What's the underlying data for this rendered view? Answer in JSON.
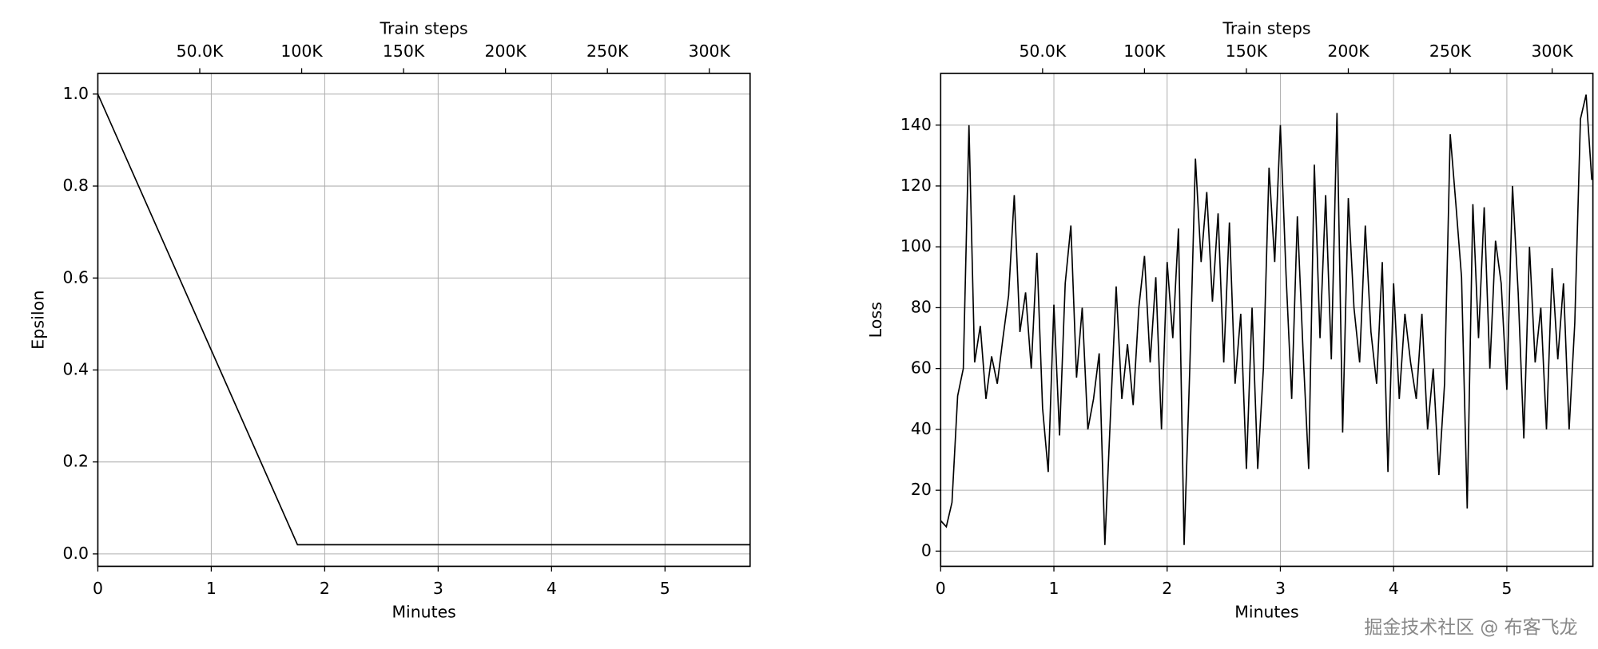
{
  "chart_data": [
    {
      "type": "line",
      "xlabel": "Minutes",
      "ylabel": "Epsilon",
      "x2label": "Train steps",
      "x": [
        0,
        1.76,
        5.75
      ],
      "values": [
        1.0,
        0.02,
        0.02
      ],
      "color": "#000000",
      "xlim": [
        0,
        5.75
      ],
      "xticks": [
        0,
        1,
        2,
        3,
        4,
        5
      ],
      "x2lim": [
        0,
        320000
      ],
      "x2ticks": [
        {
          "value": 50000,
          "label": "50.0K"
        },
        {
          "value": 100000,
          "label": "100K"
        },
        {
          "value": 150000,
          "label": "150K"
        },
        {
          "value": 200000,
          "label": "200K"
        },
        {
          "value": 250000,
          "label": "250K"
        },
        {
          "value": 300000,
          "label": "300K"
        }
      ],
      "ylim": [
        -0.027,
        1.045
      ],
      "yticks": [
        {
          "value": 0,
          "label": "0.0"
        },
        0.2,
        0.4,
        0.6,
        0.8,
        {
          "value": 1,
          "label": "1.0"
        }
      ],
      "grid": true
    },
    {
      "type": "line",
      "xlabel": "Minutes",
      "ylabel": "Loss",
      "x2label": "Train steps",
      "x": [
        0,
        0.05,
        0.1,
        0.15,
        0.2,
        0.25,
        0.3,
        0.35,
        0.4,
        0.45,
        0.5,
        0.55,
        0.6,
        0.65,
        0.7,
        0.75,
        0.8,
        0.85,
        0.9,
        0.95,
        1,
        1.05,
        1.1,
        1.15,
        1.2,
        1.25,
        1.3,
        1.35,
        1.4,
        1.45,
        1.5,
        1.55,
        1.6,
        1.65,
        1.7,
        1.75,
        1.8,
        1.85,
        1.9,
        1.95,
        2,
        2.05,
        2.1,
        2.15,
        2.2,
        2.25,
        2.3,
        2.35,
        2.4,
        2.45,
        2.5,
        2.55,
        2.6,
        2.65,
        2.7,
        2.75,
        2.8,
        2.85,
        2.9,
        2.95,
        3,
        3.05,
        3.1,
        3.15,
        3.2,
        3.25,
        3.3,
        3.35,
        3.4,
        3.45,
        3.5,
        3.55,
        3.6,
        3.65,
        3.7,
        3.75,
        3.8,
        3.85,
        3.9,
        3.95,
        4,
        4.05,
        4.1,
        4.15,
        4.2,
        4.25,
        4.3,
        4.35,
        4.4,
        4.45,
        4.5,
        4.55,
        4.6,
        4.65,
        4.7,
        4.75,
        4.8,
        4.85,
        4.9,
        4.95,
        5,
        5.05,
        5.1,
        5.15,
        5.2,
        5.25,
        5.3,
        5.35,
        5.4,
        5.45,
        5.5,
        5.55,
        5.6,
        5.65,
        5.7,
        5.75
      ],
      "values": [
        10,
        8,
        16,
        51,
        60,
        140,
        62,
        74,
        50,
        64,
        55,
        70,
        84,
        117,
        72,
        85,
        60,
        98,
        47,
        26,
        81,
        38,
        88,
        107,
        57,
        80,
        40,
        50,
        65,
        2,
        45,
        87,
        50,
        68,
        48,
        80,
        97,
        62,
        90,
        40,
        95,
        70,
        106,
        2,
        60,
        129,
        95,
        118,
        82,
        111,
        62,
        108,
        55,
        78,
        27,
        80,
        27,
        60,
        126,
        95,
        140,
        91,
        50,
        110,
        66,
        27,
        127,
        70,
        117,
        63,
        144,
        39,
        116,
        80,
        62,
        107,
        72,
        55,
        95,
        26,
        88,
        50,
        78,
        62,
        50,
        78,
        40,
        60,
        25,
        55,
        137,
        114,
        90,
        14,
        114,
        70,
        113,
        60,
        102,
        88,
        53,
        120,
        85,
        37,
        100,
        62,
        80,
        40,
        93,
        63,
        88,
        40,
        75,
        142,
        150,
        122
      ],
      "color": "#000000",
      "xlim": [
        0,
        5.76
      ],
      "xticks": [
        0,
        1,
        2,
        3,
        4,
        5
      ],
      "x2lim": [
        0,
        320000
      ],
      "x2ticks": [
        {
          "value": 50000,
          "label": "50.0K"
        },
        {
          "value": 100000,
          "label": "100K"
        },
        {
          "value": 150000,
          "label": "150K"
        },
        {
          "value": 200000,
          "label": "200K"
        },
        {
          "value": 250000,
          "label": "250K"
        },
        {
          "value": 300000,
          "label": "300K"
        }
      ],
      "ylim": [
        -5,
        157
      ],
      "yticks": [
        0,
        20,
        40,
        60,
        80,
        100,
        120,
        140
      ],
      "grid": true
    }
  ],
  "watermark": "掘金技术社区 @ 布客飞龙"
}
